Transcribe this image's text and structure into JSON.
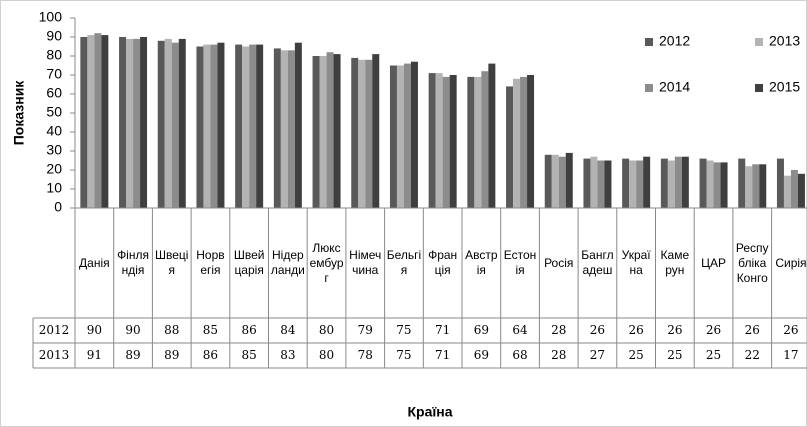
{
  "chart_data": {
    "type": "bar",
    "x_label": "Країна",
    "y_label": "Показник",
    "categories": [
      "Данія",
      "Фінляндія",
      "Швеція",
      "Норвегія",
      "Швейцарія",
      "Нідерланди",
      "Люксембург",
      "Німеччина",
      "Бельгія",
      "Франція",
      "Австрія",
      "Естонія",
      "Росія",
      "Бангладеш",
      "Україна",
      "Камерун",
      "ЦАР",
      "Республіка Конго",
      "Сирія"
    ],
    "series": [
      {
        "name": "2012",
        "color": "#595959",
        "values": [
          90,
          90,
          88,
          85,
          86,
          84,
          80,
          79,
          75,
          71,
          69,
          64,
          28,
          26,
          26,
          26,
          26,
          26,
          26
        ]
      },
      {
        "name": "2013",
        "color": "#b3b3b3",
        "values": [
          91,
          89,
          89,
          86,
          85,
          83,
          80,
          78,
          75,
          71,
          69,
          68,
          28,
          27,
          25,
          25,
          25,
          22,
          17
        ]
      },
      {
        "name": "2014",
        "color": "#8c8c8c",
        "values": [
          92,
          89,
          87,
          86,
          86,
          83,
          82,
          78,
          76,
          69,
          72,
          69,
          27,
          25,
          25,
          27,
          24,
          23,
          20
        ]
      },
      {
        "name": "2015",
        "color": "#3f3f3f",
        "values": [
          91,
          90,
          89,
          87,
          86,
          87,
          81,
          81,
          77,
          70,
          76,
          70,
          29,
          25,
          27,
          27,
          24,
          23,
          18
        ]
      }
    ],
    "table_series": [
      0,
      1
    ],
    "ylim": [
      0,
      100
    ],
    "yticks": [
      0,
      10,
      20,
      30,
      40,
      50,
      60,
      70,
      80,
      90,
      100
    ]
  }
}
